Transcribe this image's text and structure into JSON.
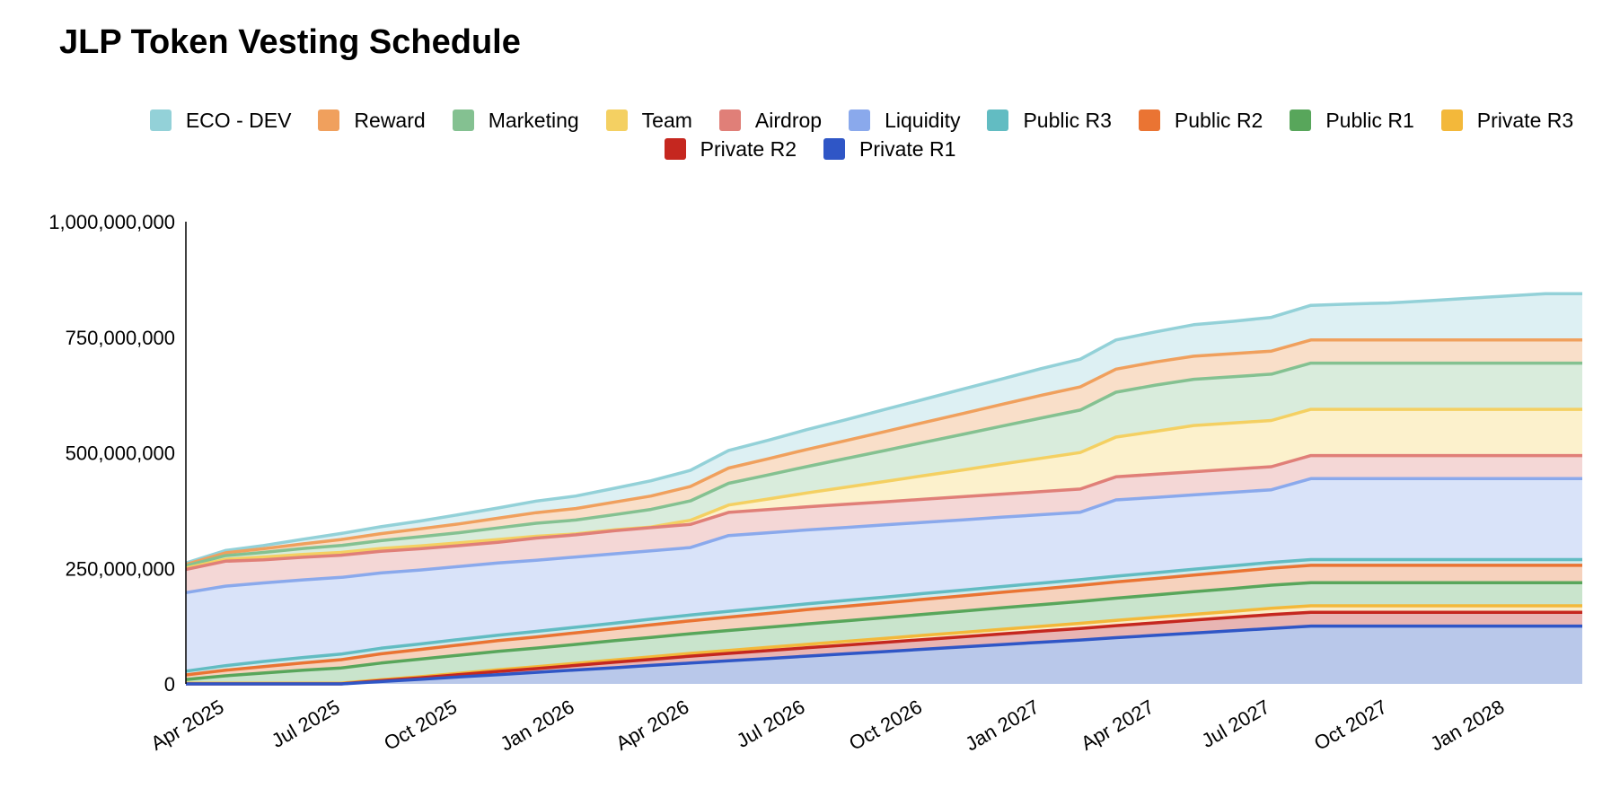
{
  "chart_data": {
    "type": "area",
    "stacked": true,
    "title": "JLP Token Vesting Schedule",
    "xlabel": "",
    "ylabel": "",
    "ylim": [
      0,
      1000000000
    ],
    "yticks": [
      0,
      250000000,
      500000000,
      750000000,
      1000000000
    ],
    "ytick_labels": [
      "0",
      "250,000,000",
      "500,000,000",
      "750,000,000",
      "1,000,000,000"
    ],
    "xlim": [
      "2025-03-01",
      "2028-03-01"
    ],
    "xticks": [
      "2025-04-01",
      "2025-07-01",
      "2025-10-01",
      "2026-01-01",
      "2026-04-01",
      "2026-07-01",
      "2026-10-01",
      "2027-01-01",
      "2027-04-01",
      "2027-07-01",
      "2027-10-01",
      "2028-01-01"
    ],
    "xtick_labels": [
      "Apr 2025",
      "Jul 2025",
      "Oct 2025",
      "Jan 2026",
      "Apr 2026",
      "Jul 2026",
      "Oct 2026",
      "Jan 2027",
      "Apr 2027",
      "Jul 2027",
      "Oct 2027",
      "Jan 2028"
    ],
    "grid": false,
    "legend_position": "top",
    "x": [
      "2025-03-01",
      "2025-04-01",
      "2025-05-01",
      "2025-06-01",
      "2025-07-01",
      "2025-08-01",
      "2025-09-01",
      "2025-10-01",
      "2025-11-01",
      "2025-12-01",
      "2026-01-01",
      "2026-02-01",
      "2026-03-01",
      "2026-04-01",
      "2026-05-01",
      "2026-06-01",
      "2026-07-01",
      "2026-08-01",
      "2026-09-01",
      "2026-10-01",
      "2026-11-01",
      "2026-12-01",
      "2027-01-01",
      "2027-02-01",
      "2027-03-01",
      "2027-04-01",
      "2027-05-01",
      "2027-06-01",
      "2027-07-01",
      "2027-08-01",
      "2027-09-01",
      "2027-10-01",
      "2027-11-01",
      "2027-12-01",
      "2028-01-01",
      "2028-02-01",
      "2028-03-01"
    ],
    "series": [
      {
        "name": "Private R1",
        "color": "#2f56c6",
        "fill": "#b9c8ea",
        "values": [
          0,
          0,
          0,
          0,
          0,
          5000000,
          10000000,
          15000000,
          20000000,
          25000000,
          30000000,
          35000000,
          40000000,
          45000000,
          50000000,
          55000000,
          60000000,
          65000000,
          70000000,
          75000000,
          80000000,
          85000000,
          90000000,
          95000000,
          100000000,
          105000000,
          110000000,
          115000000,
          120000000,
          125000000,
          125000000,
          125000000,
          125000000,
          125000000,
          125000000,
          125000000,
          125000000
        ]
      },
      {
        "name": "Private R2",
        "color": "#c5271f",
        "fill": "#e8b5b3",
        "values": [
          0,
          0,
          0,
          0,
          0,
          2000000,
          3000000,
          5000000,
          7000000,
          8000000,
          10000000,
          12000000,
          13000000,
          15000000,
          16000000,
          17000000,
          18000000,
          19000000,
          20000000,
          21000000,
          22000000,
          23000000,
          24000000,
          25000000,
          26000000,
          27000000,
          28000000,
          29000000,
          30000000,
          30000000,
          30000000,
          30000000,
          30000000,
          30000000,
          30000000,
          30000000,
          30000000
        ]
      },
      {
        "name": "Private R3",
        "color": "#f3b83a",
        "fill": "#fbecc8",
        "values": [
          1500000,
          1500000,
          1500000,
          1500000,
          1500000,
          2000000,
          2500000,
          3000000,
          3500000,
          4000000,
          4500000,
          5000000,
          5500000,
          6000000,
          6500000,
          7000000,
          7500000,
          8000000,
          8500000,
          9000000,
          9500000,
          10000000,
          10500000,
          11000000,
          11500000,
          12000000,
          12500000,
          13000000,
          13500000,
          14000000,
          14000000,
          14000000,
          14000000,
          14000000,
          14000000,
          14000000,
          14000000
        ]
      },
      {
        "name": "Public R1",
        "color": "#58a65b",
        "fill": "#c9e4cc",
        "values": [
          8000000,
          16000000,
          22000000,
          28000000,
          33000000,
          36000000,
          38000000,
          39000000,
          40000000,
          40500000,
          41000000,
          41500000,
          42000000,
          42500000,
          43000000,
          43500000,
          44000000,
          44500000,
          45000000,
          45500000,
          46000000,
          46500000,
          47000000,
          47500000,
          48000000,
          48500000,
          49000000,
          49500000,
          50000000,
          50000000,
          50000000,
          50000000,
          50000000,
          50000000,
          50000000,
          50000000,
          50000000
        ]
      },
      {
        "name": "Public R2",
        "color": "#ea7433",
        "fill": "#f6d2bd",
        "values": [
          10000000,
          12000000,
          14000000,
          16000000,
          18000000,
          20000000,
          21000000,
          22000000,
          23000000,
          24000000,
          25000000,
          26000000,
          27000000,
          28000000,
          29000000,
          30000000,
          31000000,
          31500000,
          32000000,
          32500000,
          33000000,
          33500000,
          34000000,
          34500000,
          35000000,
          35500000,
          36000000,
          36500000,
          37000000,
          37500000,
          37500000,
          37500000,
          37500000,
          37500000,
          37500000,
          37500000,
          37500000
        ]
      },
      {
        "name": "Public R3",
        "color": "#62bcc2",
        "fill": "#d3ebed",
        "values": [
          8000000,
          10000000,
          11000000,
          11500000,
          12000000,
          12000000,
          12000000,
          12000000,
          12000000,
          12000000,
          12000000,
          12000000,
          12500000,
          12500000,
          12500000,
          12500000,
          12500000,
          12500000,
          12500000,
          12500000,
          12500000,
          12500000,
          12500000,
          12500000,
          12500000,
          12500000,
          12500000,
          12500000,
          12500000,
          12500000,
          12500000,
          12500000,
          12500000,
          12500000,
          12500000,
          12500000,
          12500000
        ]
      },
      {
        "name": "Liquidity",
        "color": "#8aa9ec",
        "fill": "#d9e3f9",
        "values": [
          170000000,
          172000000,
          170000000,
          168000000,
          166000000,
          163000000,
          160000000,
          158000000,
          156000000,
          154000000,
          152000000,
          150000000,
          148000000,
          146000000,
          164000000,
          162000000,
          160000000,
          158000000,
          156000000,
          154000000,
          152000000,
          150000000,
          148000000,
          146000000,
          165000000,
          163000000,
          161000000,
          159000000,
          157000000,
          175000000,
          175000000,
          175000000,
          175000000,
          175000000,
          175000000,
          175000000,
          175000000
        ]
      },
      {
        "name": "Airdrop",
        "color": "#e07f78",
        "fill": "#f4d7d6",
        "values": [
          50000000,
          54000000,
          50000000,
          49000000,
          48000000,
          47000000,
          46000000,
          45000000,
          45000000,
          48000000,
          48000000,
          50000000,
          50000000,
          50000000,
          50000000,
          50000000,
          50000000,
          50000000,
          50000000,
          50000000,
          50000000,
          50000000,
          50000000,
          50000000,
          50000000,
          50000000,
          50000000,
          50000000,
          50000000,
          50000000,
          50000000,
          50000000,
          50000000,
          50000000,
          50000000,
          50000000,
          50000000
        ]
      },
      {
        "name": "Team",
        "color": "#f4d062",
        "fill": "#fcf1cc",
        "values": [
          3000000,
          4000000,
          6000000,
          6000000,
          6000000,
          6000000,
          6000000,
          6000000,
          6000000,
          4000000,
          2000000,
          2000000,
          1500000,
          9000000,
          16000000,
          23000000,
          30000000,
          37000000,
          44000000,
          51000000,
          58000000,
          65000000,
          72000000,
          79000000,
          86000000,
          93000000,
          100000000,
          100000000,
          100000000,
          100000000,
          100000000,
          100000000,
          100000000,
          100000000,
          100000000,
          100000000,
          100000000
        ]
      },
      {
        "name": "Marketing",
        "color": "#84c191",
        "fill": "#d9ecdc",
        "values": [
          5000000,
          8000000,
          10000000,
          13000000,
          15000000,
          17000000,
          20000000,
          22000000,
          25000000,
          28000000,
          30000000,
          33000000,
          38000000,
          42000000,
          47000000,
          52000000,
          57000000,
          62000000,
          67000000,
          72000000,
          77000000,
          82000000,
          87000000,
          92000000,
          97000000,
          100000000,
          100000000,
          100000000,
          100000000,
          100000000,
          100000000,
          100000000,
          100000000,
          100000000,
          100000000,
          100000000,
          100000000
        ]
      },
      {
        "name": "Reward",
        "color": "#f0a05d",
        "fill": "#f9dfc9",
        "values": [
          3000000,
          6000000,
          8000000,
          10000000,
          13000000,
          15000000,
          17000000,
          19000000,
          21000000,
          23000000,
          25000000,
          27000000,
          29000000,
          31000000,
          33000000,
          35000000,
          37000000,
          39000000,
          41000000,
          43000000,
          45000000,
          47000000,
          49000000,
          50000000,
          50000000,
          50000000,
          50000000,
          50000000,
          50000000,
          50000000,
          50000000,
          50000000,
          50000000,
          50000000,
          50000000,
          50000000,
          50000000
        ]
      },
      {
        "name": "ECO - DEV",
        "color": "#93d1d8",
        "fill": "#ddf0f3",
        "values": [
          3000000,
          5000000,
          7000000,
          10000000,
          13000000,
          15000000,
          17000000,
          20000000,
          22000000,
          25000000,
          27000000,
          30000000,
          33000000,
          35000000,
          38000000,
          40000000,
          43000000,
          45000000,
          48000000,
          50000000,
          53000000,
          55000000,
          58000000,
          60000000,
          63000000,
          65000000,
          68000000,
          70000000,
          73000000,
          75000000,
          78000000,
          80000000,
          85000000,
          90000000,
          95000000,
          100000000,
          100000000
        ]
      }
    ]
  },
  "legend": {
    "row1": [
      {
        "label": "ECO - DEV",
        "color": "#93d1d8"
      },
      {
        "label": "Reward",
        "color": "#f0a05d"
      },
      {
        "label": "Marketing",
        "color": "#84c191"
      },
      {
        "label": "Team",
        "color": "#f4d062"
      },
      {
        "label": "Airdrop",
        "color": "#e07f78"
      },
      {
        "label": "Liquidity",
        "color": "#8aa9ec"
      },
      {
        "label": "Public R3",
        "color": "#62bcc2"
      },
      {
        "label": "Public R2",
        "color": "#ea7433"
      },
      {
        "label": "Public R1",
        "color": "#58a65b"
      },
      {
        "label": "Private R3",
        "color": "#f3b83a"
      }
    ],
    "row2": [
      {
        "label": "Private R2",
        "color": "#c5271f"
      },
      {
        "label": "Private R1",
        "color": "#2f56c6"
      }
    ]
  }
}
